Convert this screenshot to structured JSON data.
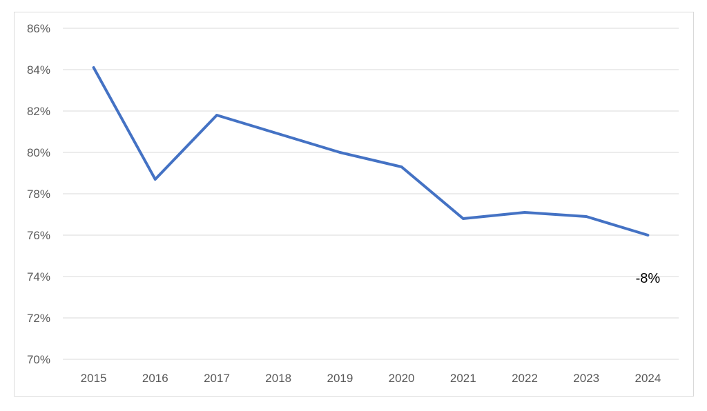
{
  "chart_data": {
    "type": "line",
    "title": "",
    "xlabel": "",
    "ylabel": "",
    "categories": [
      "2015",
      "2016",
      "2017",
      "2018",
      "2019",
      "2020",
      "2021",
      "2022",
      "2023",
      "2024"
    ],
    "series": [
      {
        "values": [
          84.1,
          78.7,
          81.8,
          80.9,
          80.0,
          79.3,
          76.8,
          77.1,
          76.9,
          76.0
        ],
        "color": "#4472C4"
      }
    ],
    "ylim": [
      70,
      86
    ],
    "y_ticks": [
      "70%",
      "72%",
      "74%",
      "76%",
      "78%",
      "80%",
      "82%",
      "84%",
      "86%"
    ],
    "grid": true,
    "legend": "none",
    "annotations": [
      {
        "text": "-8%",
        "category": "2024",
        "y": 74.0
      }
    ]
  }
}
